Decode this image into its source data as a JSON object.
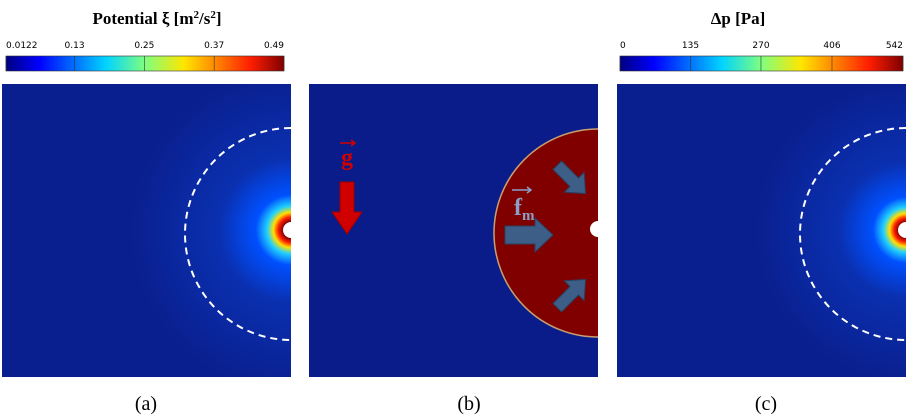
{
  "colorbars": [
    {
      "title": {
        "text": "Potential ξ  [m",
        "sup1": "2",
        "mid": "/s",
        "sup2": "2",
        "end": "]"
      },
      "range": [
        0.0122,
        0.49
      ],
      "ticks": [
        0.0122,
        0.13,
        0.25,
        0.37,
        0.49
      ]
    },
    {
      "title": {
        "text": "Δp  [Pa]"
      },
      "range": [
        0,
        542
      ],
      "ticks": [
        0,
        135,
        270,
        406,
        542
      ]
    }
  ],
  "panels": [
    {
      "label": "(a)"
    },
    {
      "label": "(b)",
      "gravity": "g",
      "force": "f",
      "force_sub": "m"
    },
    {
      "label": "(c)"
    }
  ]
}
